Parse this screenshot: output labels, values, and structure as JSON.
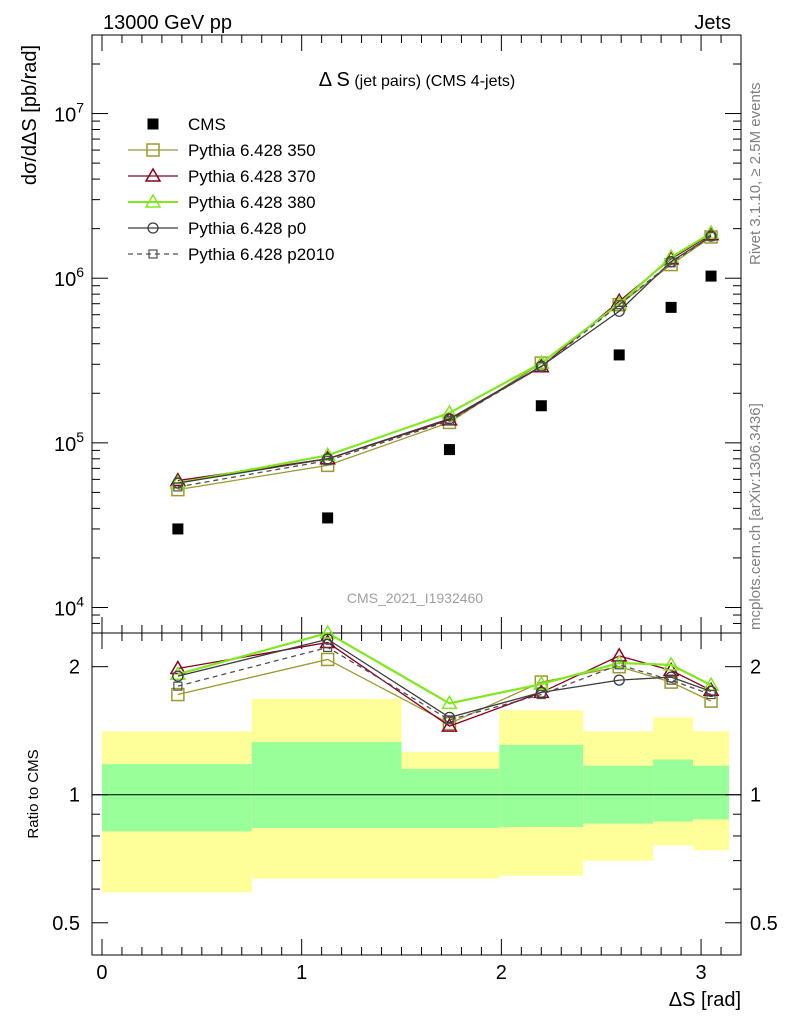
{
  "header": {
    "left": "13000 GeV pp",
    "right": "Jets"
  },
  "side_labels": {
    "rivet": "Rivet 3.1.10, ≥ 2.5M events",
    "mcplots": "mcplots.cern.ch [arXiv:1306.3436]"
  },
  "watermark": "CMS_2021_I1932460",
  "chart_data": [
    {
      "type": "line",
      "title_main": "Δ S",
      "title_sub": " (jet pairs) (CMS 4-jets)",
      "ylabel": "dσ/dΔS [pb/rad]",
      "xlabel": "",
      "yscale": "log",
      "ylim": [
        7000,
        30000000
      ],
      "xlim": [
        -0.05,
        3.2
      ],
      "y_ticks": [
        10000,
        100000,
        1000000,
        10000000
      ],
      "y_tick_labels": [
        {
          "base": "10",
          "exp": "4"
        },
        {
          "base": "10",
          "exp": "5"
        },
        {
          "base": "10",
          "exp": "6"
        },
        {
          "base": "10",
          "exp": "7"
        }
      ],
      "x": [
        0.38,
        1.13,
        1.74,
        2.2,
        2.59,
        2.85,
        3.05
      ],
      "data": {
        "name": "CMS",
        "values": [
          30000,
          35000,
          91000,
          168000,
          342000,
          665000,
          1030000
        ]
      },
      "series": [
        {
          "name": "Pythia 6.428 350",
          "color": "#9b9a2d",
          "marker": "square-open",
          "dash": "solid",
          "values": [
            52000,
            73000,
            133000,
            305000,
            690000,
            1210000,
            1780000
          ]
        },
        {
          "name": "Pythia 6.428 370",
          "color": "#8b0022",
          "marker": "triangle-open",
          "dash": "solid",
          "values": [
            59000,
            80000,
            138000,
            290000,
            725000,
            1310000,
            1840000
          ]
        },
        {
          "name": "Pythia 6.428 380",
          "color": "#7fe81f",
          "marker": "triangle-open",
          "dash": "solid",
          "values": [
            57000,
            84000,
            152000,
            305000,
            700000,
            1340000,
            1880000
          ]
        },
        {
          "name": "Pythia 6.428 p0",
          "color": "#3c3c3c",
          "marker": "circle-open",
          "dash": "solid",
          "values": [
            57000,
            80000,
            140000,
            292000,
            630000,
            1260000,
            1800000
          ]
        },
        {
          "name": "Pythia 6.428 p2010",
          "color": "#505050",
          "marker": "square-small-open",
          "dash": "dashed",
          "values": [
            54000,
            78000,
            136000,
            290000,
            690000,
            1240000,
            1790000
          ]
        }
      ]
    },
    {
      "type": "line",
      "ylabel": "Ratio to CMS",
      "xlabel": "ΔS [rad]",
      "yscale": "log",
      "ylim": [
        0.42,
        2.4
      ],
      "xlim": [
        -0.05,
        3.2
      ],
      "y_ticks": [
        0.5,
        1,
        2
      ],
      "y_tick_labels": [
        "0.5",
        "1",
        "2"
      ],
      "x_ticks": [
        0,
        1,
        2,
        3
      ],
      "x_tick_labels": [
        "0",
        "1",
        "2",
        "3"
      ],
      "bins": [
        [
          0,
          0.75
        ],
        [
          0.75,
          1.5
        ],
        [
          1.5,
          1.99
        ],
        [
          1.99,
          2.41
        ],
        [
          2.41,
          2.76
        ],
        [
          2.76,
          2.96
        ],
        [
          2.96,
          3.14
        ]
      ],
      "band_inner": [
        [
          0.82,
          1.18
        ],
        [
          0.835,
          1.33
        ],
        [
          0.835,
          1.15
        ],
        [
          0.84,
          1.31
        ],
        [
          0.855,
          1.17
        ],
        [
          0.865,
          1.21
        ],
        [
          0.875,
          1.17
        ]
      ],
      "band_outer": [
        [
          0.59,
          1.41
        ],
        [
          0.635,
          1.68
        ],
        [
          0.635,
          1.26
        ],
        [
          0.645,
          1.58
        ],
        [
          0.7,
          1.41
        ],
        [
          0.76,
          1.52
        ],
        [
          0.74,
          1.41
        ]
      ],
      "x": [
        0.38,
        1.13,
        1.74,
        2.2,
        2.59,
        2.85,
        3.05
      ],
      "series": [
        {
          "name": "Pythia 6.428 350",
          "values": [
            1.72,
            2.08,
            1.47,
            1.84,
            2.0,
            1.84,
            1.66
          ]
        },
        {
          "name": "Pythia 6.428 370",
          "values": [
            1.98,
            2.28,
            1.45,
            1.74,
            2.12,
            1.96,
            1.76
          ]
        },
        {
          "name": "Pythia 6.428 380",
          "values": [
            1.92,
            2.4,
            1.64,
            1.82,
            2.04,
            2.02,
            1.81
          ]
        },
        {
          "name": "Pythia 6.428 p0",
          "values": [
            1.9,
            2.32,
            1.52,
            1.74,
            1.86,
            1.89,
            1.75
          ]
        },
        {
          "name": "Pythia 6.428 p2010",
          "values": [
            1.8,
            2.22,
            1.5,
            1.72,
            2.02,
            1.86,
            1.72
          ]
        }
      ]
    }
  ]
}
